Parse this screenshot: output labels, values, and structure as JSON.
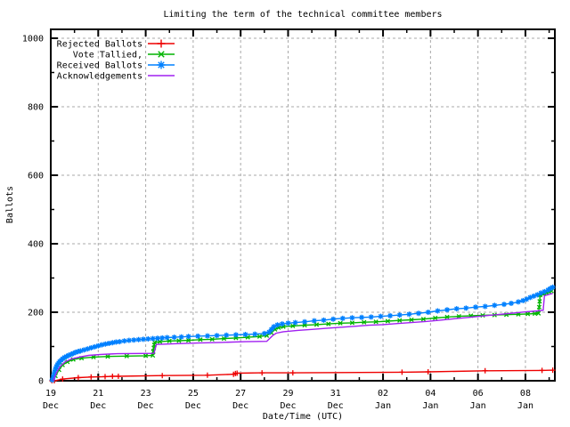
{
  "title": "Limiting the term of the technical committee members",
  "axes": {
    "x_label": "Date/Time (UTC)",
    "y_label": "Ballots",
    "x_major_ticks": [
      {
        "day": 0,
        "line1": "19",
        "line2": "Dec"
      },
      {
        "day": 2,
        "line1": "21",
        "line2": "Dec"
      },
      {
        "day": 4,
        "line1": "23",
        "line2": "Dec"
      },
      {
        "day": 6,
        "line1": "25",
        "line2": "Dec"
      },
      {
        "day": 8,
        "line1": "27",
        "line2": "Dec"
      },
      {
        "day": 10,
        "line1": "29",
        "line2": "Dec"
      },
      {
        "day": 12,
        "line1": "31",
        "line2": "Dec"
      },
      {
        "day": 14,
        "line1": "02",
        "line2": "Jan"
      },
      {
        "day": 16,
        "line1": "04",
        "line2": "Jan"
      },
      {
        "day": 18,
        "line1": "06",
        "line2": "Jan"
      },
      {
        "day": 20,
        "line1": "08",
        "line2": "Jan"
      }
    ],
    "x_minor_tick_days": [
      1,
      3,
      5,
      7,
      9,
      11,
      13,
      15,
      17,
      19,
      21
    ],
    "y_major_ticks": [
      0,
      200,
      400,
      600,
      800,
      1000
    ],
    "y_minor_ticks": [
      100,
      300,
      500,
      700,
      900
    ]
  },
  "legend": {
    "position": "top-left",
    "entries": [
      "Rejected Ballots",
      "Vote Tallied,",
      "Received Ballots",
      "Acknowledgements"
    ]
  },
  "colors": {
    "rejected": "#ee0000",
    "tallied": "#00b400",
    "received": "#0080ff",
    "acknowledgements": "#a020f0",
    "grid": "#a8a8a8",
    "border": "#000000"
  },
  "chart_data": {
    "type": "line",
    "title": "Limiting the term of the technical committee members",
    "xlabel": "Date/Time (UTC)",
    "ylabel": "Ballots",
    "ylim": [
      0,
      1000
    ],
    "xlim_days": [
      0,
      21.24
    ],
    "x_unit": "days since 19 Dec 00:00 UTC",
    "grid": "dashed major",
    "legend_position": "top-left",
    "series": [
      {
        "name": "Rejected Ballots",
        "color": "#ee0000",
        "marker": "plus",
        "points": [
          [
            0.05,
            0
          ],
          [
            0.15,
            0
          ],
          [
            0.5,
            5
          ],
          [
            1.16,
            9
          ],
          [
            1.7,
            11
          ],
          [
            2.29,
            12
          ],
          [
            2.6,
            13
          ],
          [
            2.85,
            13
          ],
          [
            4.7,
            15
          ],
          [
            6.6,
            16
          ],
          [
            7.7,
            19
          ],
          [
            7.78,
            21
          ],
          [
            7.85,
            22
          ],
          [
            8.9,
            23
          ],
          [
            10.2,
            23
          ],
          [
            14.8,
            25
          ],
          [
            15.9,
            26
          ],
          [
            18.3,
            29
          ],
          [
            20.7,
            30
          ],
          [
            21.15,
            31
          ]
        ]
      },
      {
        "name": "Vote Tallied,",
        "color": "#00b400",
        "marker": "cross",
        "points": [
          [
            0.2,
            14
          ],
          [
            0.35,
            32
          ],
          [
            0.5,
            46
          ],
          [
            0.7,
            55
          ],
          [
            0.95,
            62
          ],
          [
            1.3,
            66
          ],
          [
            1.8,
            69
          ],
          [
            2.4,
            71
          ],
          [
            3.2,
            72
          ],
          [
            4.0,
            73
          ],
          [
            4.3,
            74
          ],
          [
            4.32,
            85
          ],
          [
            4.34,
            96
          ],
          [
            4.36,
            105
          ],
          [
            4.38,
            112
          ],
          [
            4.6,
            114
          ],
          [
            5.0,
            116
          ],
          [
            5.4,
            117
          ],
          [
            5.8,
            118
          ],
          [
            6.3,
            120
          ],
          [
            6.8,
            121
          ],
          [
            7.3,
            123
          ],
          [
            7.8,
            125
          ],
          [
            8.3,
            127
          ],
          [
            8.8,
            129
          ],
          [
            9.1,
            132
          ],
          [
            9.3,
            140
          ],
          [
            9.45,
            150
          ],
          [
            9.6,
            155
          ],
          [
            9.8,
            158
          ],
          [
            10.2,
            160
          ],
          [
            10.7,
            162
          ],
          [
            11.2,
            164
          ],
          [
            11.7,
            166
          ],
          [
            12.2,
            168
          ],
          [
            12.7,
            169
          ],
          [
            13.2,
            171
          ],
          [
            13.7,
            172
          ],
          [
            14.2,
            174
          ],
          [
            14.7,
            176
          ],
          [
            15.2,
            178
          ],
          [
            15.7,
            180
          ],
          [
            16.2,
            183
          ],
          [
            16.7,
            186
          ],
          [
            17.2,
            188
          ],
          [
            17.7,
            190
          ],
          [
            18.2,
            191
          ],
          [
            18.7,
            192
          ],
          [
            19.2,
            193
          ],
          [
            19.7,
            194
          ],
          [
            20.1,
            195
          ],
          [
            20.4,
            196
          ],
          [
            20.55,
            197
          ],
          [
            20.58,
            215
          ],
          [
            20.6,
            232
          ],
          [
            20.62,
            250
          ],
          [
            20.75,
            253
          ],
          [
            20.9,
            256
          ],
          [
            21.0,
            259
          ],
          [
            21.1,
            262
          ]
        ]
      },
      {
        "name": "Received Ballots",
        "color": "#0080ff",
        "marker": "star",
        "points": [
          [
            0.06,
            2
          ],
          [
            0.1,
            10
          ],
          [
            0.13,
            18
          ],
          [
            0.16,
            26
          ],
          [
            0.2,
            34
          ],
          [
            0.24,
            41
          ],
          [
            0.28,
            47
          ],
          [
            0.33,
            52
          ],
          [
            0.38,
            56
          ],
          [
            0.44,
            60
          ],
          [
            0.5,
            64
          ],
          [
            0.58,
            68
          ],
          [
            0.66,
            71
          ],
          [
            0.75,
            74
          ],
          [
            0.85,
            77
          ],
          [
            0.95,
            80
          ],
          [
            1.05,
            83
          ],
          [
            1.15,
            85
          ],
          [
            1.25,
            87
          ],
          [
            1.4,
            90
          ],
          [
            1.55,
            93
          ],
          [
            1.7,
            96
          ],
          [
            1.85,
            99
          ],
          [
            2.0,
            102
          ],
          [
            2.15,
            105
          ],
          [
            2.3,
            107
          ],
          [
            2.45,
            109
          ],
          [
            2.6,
            111
          ],
          [
            2.75,
            113
          ],
          [
            2.9,
            114
          ],
          [
            3.1,
            116
          ],
          [
            3.3,
            118
          ],
          [
            3.5,
            119
          ],
          [
            3.7,
            120
          ],
          [
            3.9,
            121
          ],
          [
            4.1,
            122
          ],
          [
            4.3,
            123
          ],
          [
            4.5,
            124
          ],
          [
            4.7,
            125
          ],
          [
            4.9,
            126
          ],
          [
            5.2,
            127
          ],
          [
            5.5,
            128
          ],
          [
            5.8,
            129
          ],
          [
            6.2,
            130
          ],
          [
            6.6,
            131
          ],
          [
            7.0,
            132
          ],
          [
            7.4,
            133
          ],
          [
            7.8,
            134
          ],
          [
            8.2,
            135
          ],
          [
            8.6,
            136
          ],
          [
            9.0,
            138
          ],
          [
            9.2,
            142
          ],
          [
            9.3,
            150
          ],
          [
            9.4,
            158
          ],
          [
            9.55,
            163
          ],
          [
            9.75,
            166
          ],
          [
            10.0,
            168
          ],
          [
            10.3,
            170
          ],
          [
            10.7,
            172
          ],
          [
            11.1,
            175
          ],
          [
            11.5,
            177
          ],
          [
            11.9,
            180
          ],
          [
            12.3,
            182
          ],
          [
            12.7,
            184
          ],
          [
            13.1,
            185
          ],
          [
            13.5,
            186
          ],
          [
            13.9,
            188
          ],
          [
            14.3,
            190
          ],
          [
            14.7,
            192
          ],
          [
            15.1,
            194
          ],
          [
            15.5,
            197
          ],
          [
            15.9,
            200
          ],
          [
            16.3,
            204
          ],
          [
            16.7,
            207
          ],
          [
            17.1,
            210
          ],
          [
            17.5,
            212
          ],
          [
            17.9,
            215
          ],
          [
            18.3,
            217
          ],
          [
            18.7,
            220
          ],
          [
            19.1,
            223
          ],
          [
            19.4,
            226
          ],
          [
            19.7,
            230
          ],
          [
            19.9,
            234
          ],
          [
            20.05,
            238
          ],
          [
            20.2,
            243
          ],
          [
            20.35,
            247
          ],
          [
            20.5,
            251
          ],
          [
            20.65,
            256
          ],
          [
            20.8,
            260
          ],
          [
            20.95,
            265
          ],
          [
            21.05,
            269
          ],
          [
            21.15,
            273
          ]
        ]
      },
      {
        "name": "Acknowledgements",
        "color": "#a020f0",
        "marker": "none",
        "points": [
          [
            0.1,
            0
          ],
          [
            0.25,
            25
          ],
          [
            0.4,
            42
          ],
          [
            0.6,
            55
          ],
          [
            0.85,
            63
          ],
          [
            1.2,
            69
          ],
          [
            1.6,
            74
          ],
          [
            2.1,
            77
          ],
          [
            2.8,
            79
          ],
          [
            4.35,
            80
          ],
          [
            4.45,
            106
          ],
          [
            5.2,
            108
          ],
          [
            6.2,
            110
          ],
          [
            7.2,
            112
          ],
          [
            8.2,
            114
          ],
          [
            9.1,
            115
          ],
          [
            9.35,
            132
          ],
          [
            9.5,
            139
          ],
          [
            9.8,
            143
          ],
          [
            10.4,
            147
          ],
          [
            11.0,
            150
          ],
          [
            11.6,
            153
          ],
          [
            12.2,
            156
          ],
          [
            12.8,
            159
          ],
          [
            13.4,
            162
          ],
          [
            14.0,
            164
          ],
          [
            14.6,
            167
          ],
          [
            15.2,
            170
          ],
          [
            15.8,
            173
          ],
          [
            16.4,
            177
          ],
          [
            17.0,
            181
          ],
          [
            17.6,
            185
          ],
          [
            18.2,
            189
          ],
          [
            18.8,
            193
          ],
          [
            19.4,
            197
          ],
          [
            20.0,
            201
          ],
          [
            20.5,
            204
          ],
          [
            20.75,
            206
          ],
          [
            20.8,
            248
          ],
          [
            21.0,
            252
          ],
          [
            21.15,
            255
          ]
        ]
      }
    ]
  }
}
